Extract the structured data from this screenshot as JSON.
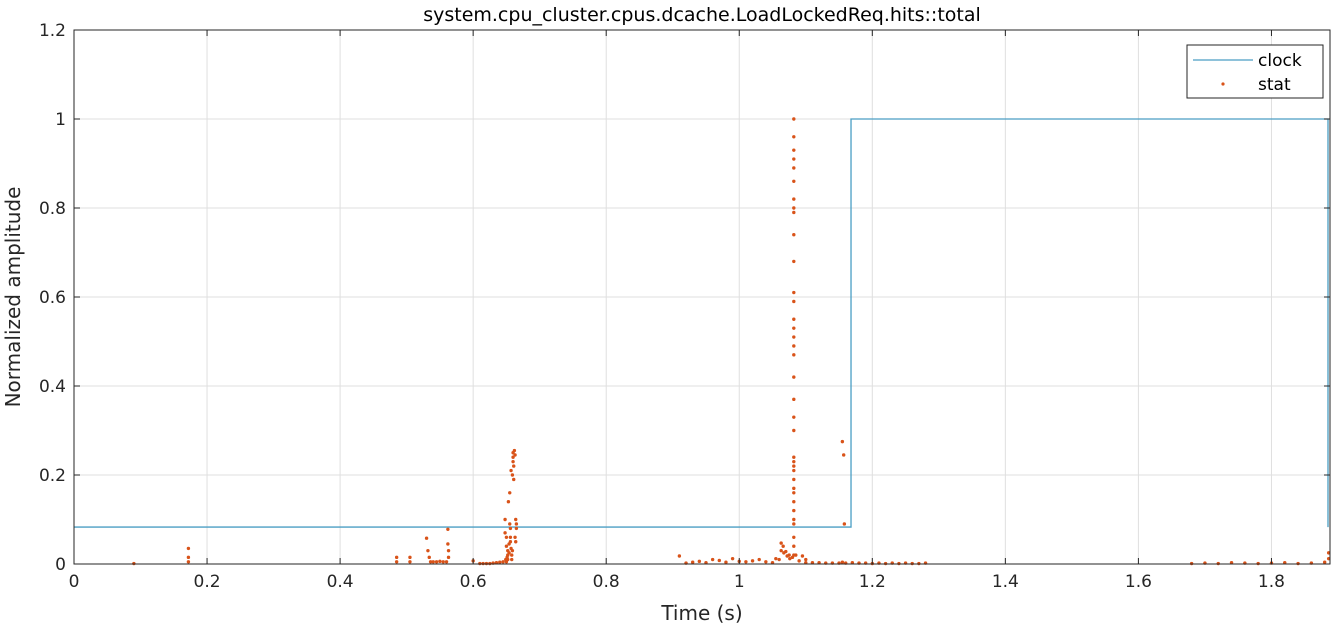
{
  "chart_data": {
    "type": "scatter",
    "title": "system.cpu_cluster.cpus.dcache.LoadLockedReq.hits::total",
    "xlabel": "Time (s)",
    "ylabel": "Normalized amplitude",
    "xlim": [
      0,
      1.888
    ],
    "ylim": [
      0,
      1.2
    ],
    "x_ticks": [
      0,
      0.2,
      0.4,
      0.6,
      0.8,
      1,
      1.2,
      1.4,
      1.6,
      1.8
    ],
    "x_tick_labels": [
      "0",
      "0.2",
      "0.4",
      "0.6",
      "0.8",
      "1",
      "1.2",
      "1.4",
      "1.6",
      "1.8"
    ],
    "y_ticks": [
      0,
      0.2,
      0.4,
      0.6,
      0.8,
      1,
      1.2
    ],
    "y_tick_labels": [
      "0",
      "0.2",
      "0.4",
      "0.6",
      "0.8",
      "1",
      "1.2"
    ],
    "grid": true,
    "legend_position": "top-right",
    "series": [
      {
        "name": "clock",
        "style": "line",
        "color": "#4a9ec4",
        "x": [
          0,
          1.168,
          1.168,
          1.885,
          1.885
        ],
        "y": [
          0.083,
          0.083,
          1,
          1,
          0.083
        ]
      },
      {
        "name": "stat",
        "style": "points",
        "color": "#d95319",
        "x": [
          0.09,
          0.172,
          0.172,
          0.172,
          0.485,
          0.485,
          0.505,
          0.505,
          0.53,
          0.532,
          0.534,
          0.536,
          0.54,
          0.545,
          0.55,
          0.555,
          0.56,
          0.562,
          0.562,
          0.563,
          0.563,
          0.6,
          0.61,
          0.615,
          0.62,
          0.625,
          0.63,
          0.635,
          0.64,
          0.645,
          0.648,
          0.648,
          0.65,
          0.65,
          0.652,
          0.652,
          0.652,
          0.654,
          0.654,
          0.655,
          0.656,
          0.656,
          0.656,
          0.657,
          0.658,
          0.658,
          0.659,
          0.66,
          0.66,
          0.66,
          0.661,
          0.662,
          0.663,
          0.664,
          0.665,
          0.665,
          0.655,
          0.653,
          0.657,
          0.659,
          0.661,
          0.651,
          0.65,
          0.649,
          0.663,
          0.664,
          0.91,
          0.92,
          0.93,
          0.94,
          0.95,
          0.96,
          0.97,
          0.98,
          0.99,
          1.0,
          1.01,
          1.02,
          1.03,
          1.04,
          1.05,
          1.055,
          1.06,
          1.063,
          1.066,
          1.07,
          1.075,
          1.08,
          1.085,
          1.09,
          1.1,
          1.11,
          1.12,
          1.13,
          1.14,
          1.15,
          1.155,
          1.16,
          1.063,
          1.067,
          1.072,
          1.076,
          1.095,
          1.1,
          1.082,
          1.082,
          1.082,
          1.082,
          1.082,
          1.082,
          1.082,
          1.082,
          1.082,
          1.082,
          1.082,
          1.082,
          1.082,
          1.082,
          1.082,
          1.082,
          1.082,
          1.082,
          1.082,
          1.082,
          1.082,
          1.082,
          1.082,
          1.082,
          1.082,
          1.082,
          1.082,
          1.082,
          1.082,
          1.082,
          1.082,
          1.082,
          1.082,
          1.082,
          1.082,
          1.082,
          1.155,
          1.157,
          1.158,
          1.17,
          1.18,
          1.19,
          1.2,
          1.21,
          1.22,
          1.23,
          1.24,
          1.25,
          1.26,
          1.27,
          1.28,
          1.68,
          1.7,
          1.72,
          1.74,
          1.76,
          1.78,
          1.8,
          1.82,
          1.84,
          1.86,
          1.88,
          1.886,
          1.886
        ],
        "y": [
          0.001,
          0.035,
          0.015,
          0.005,
          0.015,
          0.005,
          0.015,
          0.005,
          0.058,
          0.03,
          0.015,
          0.005,
          0.005,
          0.005,
          0.006,
          0.005,
          0.005,
          0.078,
          0.045,
          0.03,
          0.015,
          0.007,
          0.001,
          0.001,
          0.001,
          0.001,
          0.002,
          0.003,
          0.004,
          0.005,
          0.1,
          0.07,
          0.06,
          0.04,
          0.03,
          0.02,
          0.01,
          0.045,
          0.025,
          0.09,
          0.08,
          0.06,
          0.05,
          0.035,
          0.02,
          0.01,
          0.03,
          0.25,
          0.24,
          0.23,
          0.22,
          0.255,
          0.245,
          0.1,
          0.09,
          0.08,
          0.16,
          0.14,
          0.21,
          0.2,
          0.19,
          0.015,
          0.005,
          0.01,
          0.06,
          0.05,
          0.018,
          0.002,
          0.004,
          0.006,
          0.003,
          0.01,
          0.008,
          0.004,
          0.012,
          0.006,
          0.005,
          0.007,
          0.01,
          0.005,
          0.003,
          0.012,
          0.01,
          0.047,
          0.04,
          0.028,
          0.02,
          0.015,
          0.02,
          0.007,
          0.003,
          0.003,
          0.003,
          0.002,
          0.002,
          0.002,
          0.004,
          0.002,
          0.03,
          0.025,
          0.018,
          0.012,
          0.018,
          0.01,
          1.0,
          0.96,
          0.93,
          0.91,
          0.89,
          0.86,
          0.82,
          0.8,
          0.79,
          0.74,
          0.68,
          0.61,
          0.59,
          0.55,
          0.53,
          0.51,
          0.49,
          0.47,
          0.42,
          0.37,
          0.33,
          0.3,
          0.24,
          0.23,
          0.22,
          0.21,
          0.19,
          0.17,
          0.16,
          0.14,
          0.12,
          0.1,
          0.09,
          0.06,
          0.04,
          0.02,
          0.275,
          0.245,
          0.09,
          0.003,
          0.002,
          0.002,
          0.001,
          0.002,
          0.001,
          0.002,
          0.001,
          0.002,
          0.001,
          0.001,
          0.002,
          0.001,
          0.002,
          0.001,
          0.003,
          0.002,
          0.001,
          0.002,
          0.003,
          0.001,
          0.002,
          0.004,
          0.012,
          0.025
        ]
      }
    ]
  }
}
